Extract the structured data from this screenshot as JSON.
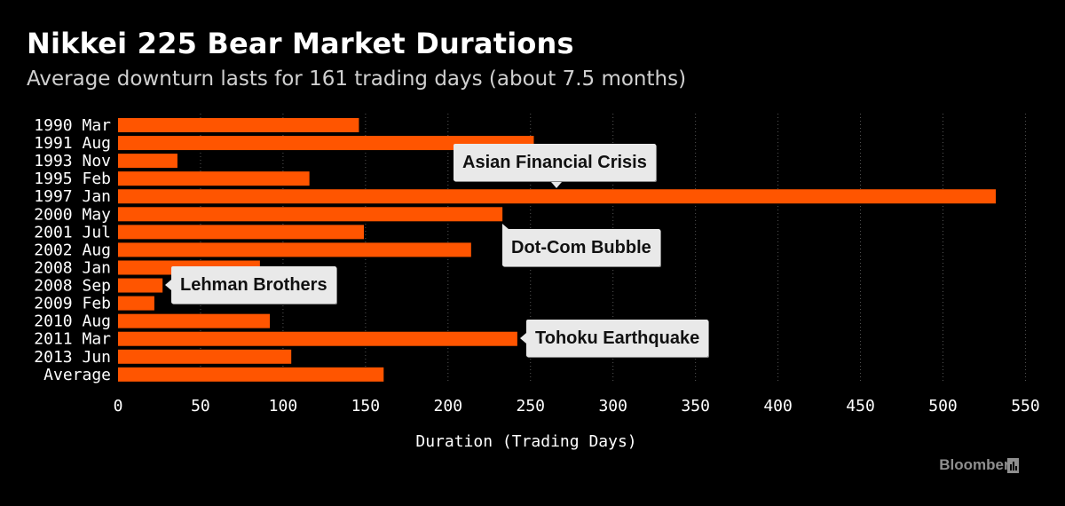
{
  "header": {
    "title": "Nikkei 225 Bear Market Durations",
    "subtitle": "Average downturn lasts for 161 trading days (about 7.5 months)"
  },
  "footer": {
    "source": "Bloomberg",
    "source_icon": "bloomberg-logo-icon"
  },
  "colors": {
    "background": "#000000",
    "bar": "#ff5500",
    "grid": "#555555",
    "annotation_bg": "#e9e9e9",
    "annotation_text": "#111111"
  },
  "chart_data": {
    "type": "bar",
    "orientation": "horizontal",
    "categories": [
      "1990 Mar",
      "1991 Aug",
      "1993 Nov",
      "1995 Feb",
      "1997 Jan",
      "2000 May",
      "2001 Jul",
      "2002 Aug",
      "2008 Jan",
      "2008 Sep",
      "2009 Feb",
      "2010 Aug",
      "2011 Mar",
      "2013 Jun",
      "Average"
    ],
    "values": [
      146,
      252,
      36,
      116,
      532,
      233,
      149,
      214,
      86,
      27,
      22,
      92,
      242,
      105,
      161
    ],
    "xlabel": "Duration (Trading Days)",
    "xlim": [
      0,
      560
    ],
    "xticks": [
      0,
      50,
      100,
      150,
      200,
      250,
      300,
      350,
      400,
      450,
      500,
      550
    ],
    "grid": "vertical dotted",
    "annotations": [
      {
        "text": "Asian Financial Crisis",
        "category": "1997 Jan"
      },
      {
        "text": "Dot-Com Bubble",
        "category": "2000 May"
      },
      {
        "text": "Lehman Brothers",
        "category": "2008 Sep"
      },
      {
        "text": "Tohoku Earthquake",
        "category": "2011 Mar"
      }
    ]
  }
}
